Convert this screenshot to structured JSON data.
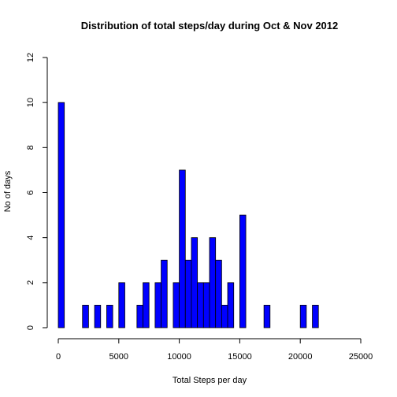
{
  "chart_data": {
    "type": "bar",
    "title": "Distribution of total steps/day during Oct & Nov 2012",
    "xlabel": "Total Steps per day",
    "ylabel": "No of days",
    "xlim": [
      0,
      25000
    ],
    "ylim": [
      0,
      12
    ],
    "x_ticks": [
      "0",
      "5000",
      "10000",
      "15000",
      "20000",
      "25000"
    ],
    "y_ticks": [
      "0",
      "2",
      "4",
      "6",
      "8",
      "10",
      "12"
    ],
    "bin_width": 500,
    "bins": [
      {
        "x0": 0,
        "x1": 500,
        "count": 10
      },
      {
        "x0": 2000,
        "x1": 2500,
        "count": 1
      },
      {
        "x0": 3000,
        "x1": 3500,
        "count": 1
      },
      {
        "x0": 4000,
        "x1": 4500,
        "count": 1
      },
      {
        "x0": 5000,
        "x1": 5500,
        "count": 2
      },
      {
        "x0": 6500,
        "x1": 7000,
        "count": 1
      },
      {
        "x0": 7000,
        "x1": 7500,
        "count": 2
      },
      {
        "x0": 8000,
        "x1": 8500,
        "count": 2
      },
      {
        "x0": 8500,
        "x1": 9000,
        "count": 3
      },
      {
        "x0": 9500,
        "x1": 10000,
        "count": 2
      },
      {
        "x0": 10000,
        "x1": 10500,
        "count": 7
      },
      {
        "x0": 10500,
        "x1": 11000,
        "count": 3
      },
      {
        "x0": 11000,
        "x1": 11500,
        "count": 4
      },
      {
        "x0": 11500,
        "x1": 12000,
        "count": 2
      },
      {
        "x0": 12000,
        "x1": 12500,
        "count": 2
      },
      {
        "x0": 12500,
        "x1": 13000,
        "count": 4
      },
      {
        "x0": 13000,
        "x1": 13500,
        "count": 3
      },
      {
        "x0": 13500,
        "x1": 14000,
        "count": 1
      },
      {
        "x0": 14000,
        "x1": 14500,
        "count": 2
      },
      {
        "x0": 15000,
        "x1": 15500,
        "count": 5
      },
      {
        "x0": 17000,
        "x1": 17500,
        "count": 1
      },
      {
        "x0": 20000,
        "x1": 20500,
        "count": 1
      },
      {
        "x0": 21000,
        "x1": 21500,
        "count": 1
      }
    ],
    "bar_color": "#0000ff",
    "grid": false,
    "legend": "none"
  }
}
